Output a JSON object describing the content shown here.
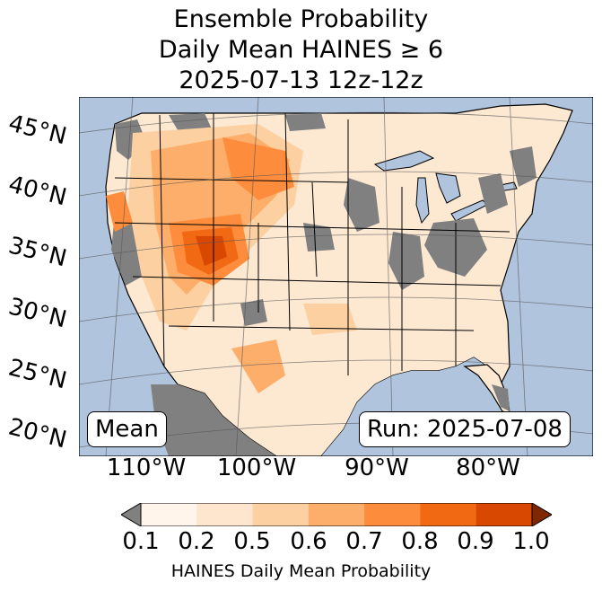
{
  "title": {
    "line1": "Ensemble Probability",
    "line2": "Daily Mean HAINES ≥ 6",
    "line3": "2025-07-13 12z-12z"
  },
  "latitudes": [
    "45°N",
    "40°N",
    "35°N",
    "30°N",
    "25°N",
    "20°N"
  ],
  "longitudes": [
    "110°W",
    "100°W",
    "90°W",
    "80°W"
  ],
  "labels": {
    "mean": "Mean",
    "run": "Run: 2025-07-08"
  },
  "colorbar": {
    "ticks": [
      "0.1",
      "0.2",
      "0.5",
      "0.6",
      "0.7",
      "0.8",
      "0.9",
      "1.0"
    ],
    "colors": [
      "#fff5eb",
      "#fee6ce",
      "#fdd0a2",
      "#fdae6b",
      "#fd8d3c",
      "#f16913",
      "#d94801",
      "#a63603"
    ],
    "under_color": "#808080",
    "label": "HAINES Daily Mean Probability"
  },
  "colors": {
    "ocean": "#b0c4de",
    "land_nodata": "#808080",
    "borders": "#000000",
    "grid": "#555555"
  }
}
